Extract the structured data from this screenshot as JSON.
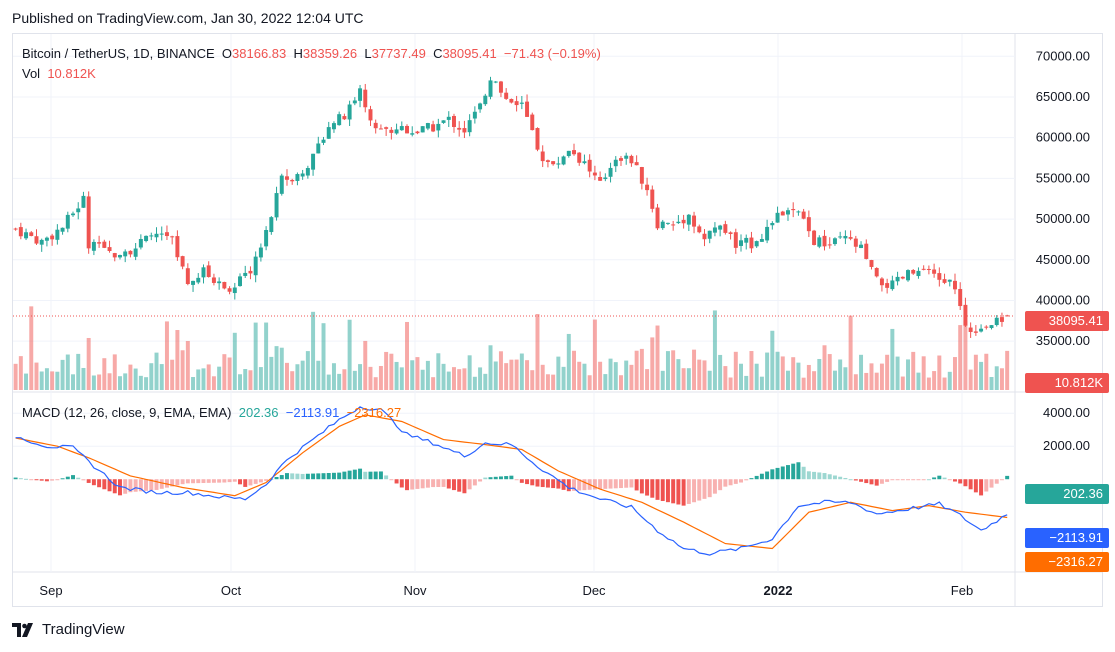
{
  "header": {
    "published": "Published on TradingView.com, Jan 30, 2022 12:04 UTC"
  },
  "legend": {
    "symbol": "Bitcoin / TetherUS, 1D, BINANCE",
    "o_label": "O",
    "o_value": "38166.83",
    "h_label": "H",
    "h_value": "38359.26",
    "l_label": "L",
    "l_value": "37737.49",
    "c_label": "C",
    "c_value": "38095.41",
    "change": "−71.43 (−0.19%)",
    "vol_label": "Vol",
    "vol_value": "10.812K"
  },
  "macd_legend": {
    "label": "MACD (12, 26, close, 9, EMA, EMA)",
    "hist": "202.36",
    "macd": "−2113.91",
    "signal": "−2316.27"
  },
  "badges": {
    "price": "38095.41",
    "volume": "10.812K",
    "hist": "202.36",
    "macd": "−2113.91",
    "signal": "−2316.27"
  },
  "colors": {
    "up": "#26a69a",
    "down": "#ef5350",
    "macd": "#2962ff",
    "signal": "#ff6d00"
  },
  "footer": {
    "brand": "TradingView"
  },
  "chart_data": [
    {
      "type": "candlestick",
      "title": "Bitcoin / TetherUS, 1D, BINANCE",
      "x_labels": [
        "Sep",
        "Oct",
        "Nov",
        "Dec",
        "2022",
        "Feb"
      ],
      "y_ticks": [
        "70000.00",
        "65000.00",
        "60000.00",
        "55000.00",
        "50000.00",
        "45000.00",
        "40000.00",
        "35000.00"
      ],
      "ylim": [
        29000,
        72000
      ],
      "last_price": 38095.41,
      "close_path": [
        {
          "d": 0,
          "c": 48800
        },
        {
          "d": 5,
          "c": 47200
        },
        {
          "d": 9,
          "c": 49000
        },
        {
          "d": 13,
          "c": 52500
        },
        {
          "d": 14,
          "c": 46800
        },
        {
          "d": 18,
          "c": 45800
        },
        {
          "d": 23,
          "c": 46500
        },
        {
          "d": 27,
          "c": 48300
        },
        {
          "d": 30,
          "c": 47300
        },
        {
          "d": 33,
          "c": 41800
        },
        {
          "d": 36,
          "c": 43500
        },
        {
          "d": 39,
          "c": 42000
        },
        {
          "d": 42,
          "c": 41600
        },
        {
          "d": 45,
          "c": 43800
        },
        {
          "d": 48,
          "c": 48200
        },
        {
          "d": 51,
          "c": 54800
        },
        {
          "d": 54,
          "c": 55500
        },
        {
          "d": 57,
          "c": 57500
        },
        {
          "d": 60,
          "c": 61800
        },
        {
          "d": 63,
          "c": 62500
        },
        {
          "d": 66,
          "c": 65900
        },
        {
          "d": 68,
          "c": 61800
        },
        {
          "d": 71,
          "c": 60800
        },
        {
          "d": 74,
          "c": 61300
        },
        {
          "d": 77,
          "c": 60700
        },
        {
          "d": 80,
          "c": 61300
        },
        {
          "d": 83,
          "c": 62200
        },
        {
          "d": 86,
          "c": 60900
        },
        {
          "d": 89,
          "c": 63800
        },
        {
          "d": 91,
          "c": 67500
        },
        {
          "d": 94,
          "c": 64900
        },
        {
          "d": 97,
          "c": 64200
        },
        {
          "d": 100,
          "c": 58300
        },
        {
          "d": 103,
          "c": 56300
        },
        {
          "d": 106,
          "c": 58700
        },
        {
          "d": 109,
          "c": 56900
        },
        {
          "d": 112,
          "c": 54100
        },
        {
          "d": 115,
          "c": 57800
        },
        {
          "d": 118,
          "c": 57200
        },
        {
          "d": 121,
          "c": 53600
        },
        {
          "d": 123,
          "c": 49500
        },
        {
          "d": 126,
          "c": 49300
        },
        {
          "d": 129,
          "c": 50500
        },
        {
          "d": 132,
          "c": 47500
        },
        {
          "d": 135,
          "c": 49300
        },
        {
          "d": 138,
          "c": 46800
        },
        {
          "d": 141,
          "c": 47100
        },
        {
          "d": 144,
          "c": 48800
        },
        {
          "d": 147,
          "c": 50800
        },
        {
          "d": 150,
          "c": 50600
        },
        {
          "d": 153,
          "c": 47300
        },
        {
          "d": 156,
          "c": 46800
        },
        {
          "d": 159,
          "c": 47600
        },
        {
          "d": 162,
          "c": 46300
        },
        {
          "d": 165,
          "c": 42300
        },
        {
          "d": 168,
          "c": 41800
        },
        {
          "d": 171,
          "c": 43200
        },
        {
          "d": 174,
          "c": 43500
        },
        {
          "d": 177,
          "c": 42600
        },
        {
          "d": 180,
          "c": 41900
        },
        {
          "d": 182,
          "c": 36300
        },
        {
          "d": 185,
          "c": 36800
        },
        {
          "d": 188,
          "c": 37200
        },
        {
          "d": 190,
          "c": 38095
        }
      ]
    },
    {
      "type": "bar",
      "title": "Vol",
      "last_value": "10.812K",
      "description": "Daily volume bars colored by candle direction"
    },
    {
      "type": "line",
      "title": "MACD (12, 26, close, 9, EMA, EMA)",
      "y_ticks": [
        "4000.00",
        "2000.00"
      ],
      "ylim": [
        -5500,
        4800
      ],
      "macd_path": [
        {
          "d": 0,
          "v": 2600
        },
        {
          "d": 6,
          "v": 2000
        },
        {
          "d": 11,
          "v": 1900
        },
        {
          "d": 15,
          "v": 800
        },
        {
          "d": 20,
          "v": -500
        },
        {
          "d": 27,
          "v": -800
        },
        {
          "d": 33,
          "v": -800
        },
        {
          "d": 40,
          "v": -1100
        },
        {
          "d": 44,
          "v": -1200
        },
        {
          "d": 48,
          "v": -300
        },
        {
          "d": 52,
          "v": 1200
        },
        {
          "d": 57,
          "v": 2400
        },
        {
          "d": 62,
          "v": 3600
        },
        {
          "d": 66,
          "v": 4400
        },
        {
          "d": 70,
          "v": 4200
        },
        {
          "d": 75,
          "v": 2700
        },
        {
          "d": 80,
          "v": 2200
        },
        {
          "d": 86,
          "v": 1400
        },
        {
          "d": 90,
          "v": 2200
        },
        {
          "d": 95,
          "v": 2100
        },
        {
          "d": 100,
          "v": 800
        },
        {
          "d": 106,
          "v": -500
        },
        {
          "d": 112,
          "v": -1200
        },
        {
          "d": 118,
          "v": -1700
        },
        {
          "d": 123,
          "v": -3100
        },
        {
          "d": 128,
          "v": -4200
        },
        {
          "d": 133,
          "v": -4500
        },
        {
          "d": 139,
          "v": -4200
        },
        {
          "d": 145,
          "v": -3600
        },
        {
          "d": 150,
          "v": -1600
        },
        {
          "d": 155,
          "v": -1400
        },
        {
          "d": 160,
          "v": -1400
        },
        {
          "d": 165,
          "v": -2100
        },
        {
          "d": 171,
          "v": -1800
        },
        {
          "d": 177,
          "v": -1500
        },
        {
          "d": 181,
          "v": -2200
        },
        {
          "d": 185,
          "v": -3100
        },
        {
          "d": 190,
          "v": -2113.91
        }
      ],
      "signal_path": [
        {
          "d": 0,
          "v": 2500
        },
        {
          "d": 8,
          "v": 2000
        },
        {
          "d": 14,
          "v": 1300
        },
        {
          "d": 22,
          "v": 200
        },
        {
          "d": 32,
          "v": -500
        },
        {
          "d": 42,
          "v": -1000
        },
        {
          "d": 48,
          "v": -200
        },
        {
          "d": 55,
          "v": 1600
        },
        {
          "d": 62,
          "v": 3200
        },
        {
          "d": 67,
          "v": 3900
        },
        {
          "d": 74,
          "v": 3500
        },
        {
          "d": 82,
          "v": 2400
        },
        {
          "d": 90,
          "v": 2100
        },
        {
          "d": 97,
          "v": 1800
        },
        {
          "d": 104,
          "v": 500
        },
        {
          "d": 112,
          "v": -600
        },
        {
          "d": 120,
          "v": -1400
        },
        {
          "d": 128,
          "v": -2600
        },
        {
          "d": 136,
          "v": -3900
        },
        {
          "d": 145,
          "v": -4200
        },
        {
          "d": 152,
          "v": -2000
        },
        {
          "d": 160,
          "v": -1400
        },
        {
          "d": 168,
          "v": -1900
        },
        {
          "d": 175,
          "v": -1600
        },
        {
          "d": 182,
          "v": -2000
        },
        {
          "d": 190,
          "v": -2316.27
        }
      ],
      "histogram_last": 202.36
    }
  ]
}
